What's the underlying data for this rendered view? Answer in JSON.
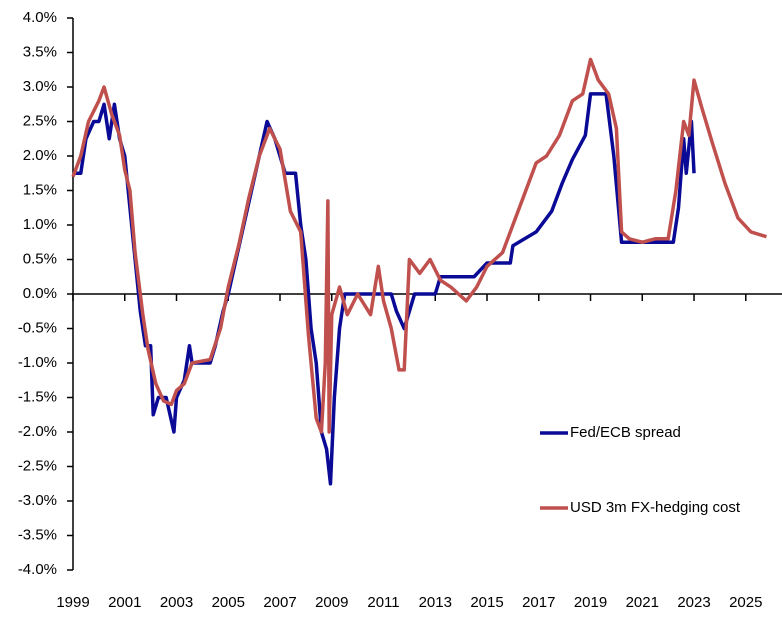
{
  "chart_data": {
    "type": "line",
    "xlim": [
      1999,
      2026.4
    ],
    "xticks": [
      1999,
      2001,
      2003,
      2005,
      2007,
      2009,
      2011,
      2013,
      2015,
      2017,
      2019,
      2021,
      2023,
      2025
    ],
    "ylim": [
      -4,
      4
    ],
    "yticks": [
      {
        "value": 4,
        "label": "4.0%"
      },
      {
        "value": 3.5,
        "label": "3.5%"
      },
      {
        "value": 3,
        "label": "3.0%"
      },
      {
        "value": 2.5,
        "label": "2.5%"
      },
      {
        "value": 2,
        "label": "2.0%"
      },
      {
        "value": 1.5,
        "label": "1.5%"
      },
      {
        "value": 1,
        "label": "1.0%"
      },
      {
        "value": 0.5,
        "label": "0.5%"
      },
      {
        "value": 0,
        "label": "0.0%"
      },
      {
        "value": -0.5,
        "label": "-0.5%"
      },
      {
        "value": -1,
        "label": "-1.0%"
      },
      {
        "value": -1.5,
        "label": "-1.5%"
      },
      {
        "value": -2,
        "label": "-2.0%"
      },
      {
        "value": -2.5,
        "label": "-2.5%"
      },
      {
        "value": -3,
        "label": "-3.0%"
      },
      {
        "value": -3.5,
        "label": "-3.5%"
      },
      {
        "value": -4,
        "label": "-4.0%"
      }
    ],
    "grid": false,
    "legend_position": "lower right",
    "series": [
      {
        "name": "Fed/ECB spread",
        "color": "#0a0a96",
        "x": [
          1999.0,
          1999.3,
          1999.5,
          1999.8,
          2000.0,
          2000.2,
          2000.4,
          2000.6,
          2000.8,
          2001.0,
          2001.2,
          2001.4,
          2001.6,
          2001.8,
          2002.0,
          2002.1,
          2002.3,
          2002.6,
          2002.9,
          2003.0,
          2003.3,
          2003.5,
          2003.6,
          2004.3,
          2004.5,
          2004.8,
          2005.0,
          2005.3,
          2005.6,
          2005.9,
          2006.2,
          2006.5,
          2006.8,
          2007.2,
          2007.6,
          2007.8,
          2008.0,
          2008.2,
          2008.4,
          2008.6,
          2008.8,
          2008.95,
          2009.1,
          2009.3,
          2009.5,
          2011.3,
          2011.5,
          2011.8,
          2012.0,
          2012.2,
          2013.0,
          2013.2,
          2014.5,
          2015.0,
          2015.9,
          2016.0,
          2016.9,
          2017.5,
          2017.9,
          2018.3,
          2018.8,
          2019.0,
          2019.6,
          2019.9,
          2020.2,
          2022.2,
          2022.4,
          2022.6,
          2022.7,
          2022.9,
          2023.0
        ],
        "values": [
          1.75,
          1.75,
          2.25,
          2.5,
          2.5,
          2.75,
          2.25,
          2.75,
          2.25,
          2.0,
          1.25,
          0.5,
          -0.25,
          -0.75,
          -0.75,
          -1.75,
          -1.5,
          -1.5,
          -2.0,
          -1.5,
          -1.25,
          -0.75,
          -1.0,
          -1.0,
          -0.75,
          -0.25,
          0.0,
          0.5,
          1.0,
          1.5,
          2.0,
          2.5,
          2.25,
          1.75,
          1.75,
          1.0,
          0.5,
          -0.5,
          -1.0,
          -2.0,
          -2.25,
          -2.75,
          -1.5,
          -0.5,
          0.0,
          0.0,
          -0.25,
          -0.5,
          -0.25,
          0.0,
          0.0,
          0.25,
          0.25,
          0.45,
          0.45,
          0.7,
          0.9,
          1.2,
          1.6,
          1.95,
          2.3,
          2.9,
          2.9,
          2.0,
          0.75,
          0.75,
          1.25,
          2.25,
          1.75,
          2.5,
          1.75
        ]
      },
      {
        "name": "USD 3m FX-hedging cost",
        "color": "#c0504d",
        "x": [
          1999.0,
          1999.3,
          1999.6,
          2000.0,
          2000.2,
          2000.5,
          2000.8,
          2001.0,
          2001.2,
          2001.4,
          2001.7,
          2001.9,
          2002.2,
          2002.5,
          2002.8,
          2003.0,
          2003.3,
          2003.6,
          2004.3,
          2004.7,
          2005.0,
          2005.4,
          2005.8,
          2006.2,
          2006.6,
          2007.0,
          2007.4,
          2007.8,
          2008.1,
          2008.4,
          2008.6,
          2008.75,
          2008.85,
          2008.9,
          2009.0,
          2009.3,
          2009.6,
          2010.0,
          2010.5,
          2010.8,
          2011.0,
          2011.3,
          2011.6,
          2011.8,
          2012.0,
          2012.4,
          2012.8,
          2013.2,
          2013.6,
          2014.2,
          2014.6,
          2015.0,
          2015.6,
          2016.0,
          2016.5,
          2016.9,
          2017.3,
          2017.8,
          2018.3,
          2018.7,
          2019.0,
          2019.3,
          2019.7,
          2020.0,
          2020.2,
          2020.5,
          2021.0,
          2021.5,
          2022.0,
          2022.3,
          2022.6,
          2022.8,
          2023.0,
          2023.3,
          2023.7,
          2024.2,
          2024.7,
          2025.2,
          2025.8
        ],
        "values": [
          1.7,
          2.0,
          2.5,
          2.8,
          3.0,
          2.6,
          2.3,
          1.8,
          1.5,
          0.6,
          -0.3,
          -0.8,
          -1.3,
          -1.55,
          -1.6,
          -1.4,
          -1.3,
          -1.0,
          -0.95,
          -0.5,
          0.1,
          0.7,
          1.4,
          2.0,
          2.4,
          2.1,
          1.2,
          0.9,
          -0.6,
          -1.8,
          -2.0,
          -1.0,
          1.35,
          -2.0,
          -0.3,
          0.1,
          -0.3,
          0.0,
          -0.3,
          0.4,
          -0.1,
          -0.5,
          -1.1,
          -1.1,
          0.5,
          0.3,
          0.5,
          0.2,
          0.1,
          -0.1,
          0.1,
          0.4,
          0.6,
          1.0,
          1.5,
          1.9,
          2.0,
          2.3,
          2.8,
          2.9,
          3.4,
          3.1,
          2.9,
          2.4,
          0.9,
          0.8,
          0.75,
          0.8,
          0.8,
          1.5,
          2.5,
          2.3,
          3.1,
          2.7,
          2.2,
          1.6,
          1.1,
          0.9,
          0.83
        ]
      }
    ]
  }
}
